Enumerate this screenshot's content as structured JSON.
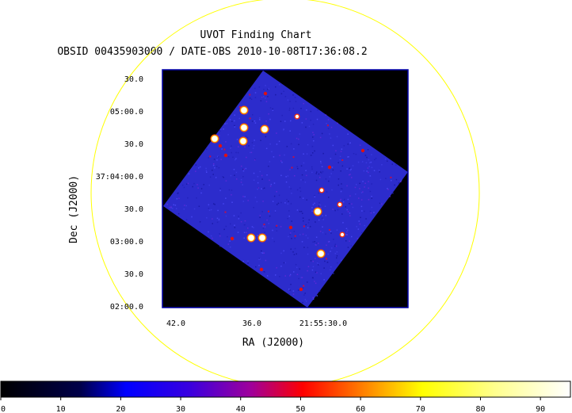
{
  "chart_data": {
    "type": "heatmap",
    "title": "UVOT Finding Chart",
    "subtitle": "OBSID 00435903000 / DATE-OBS 2010-10-08T17:36:08.2",
    "xlabel": "RA (J2000)",
    "ylabel": "Dec (J2000)",
    "x_ticks": [
      "42.0",
      "36.0",
      "21:55:30.0"
    ],
    "y_ticks": [
      "30.0",
      "05:00.0",
      "30.0",
      "37:04:00.0",
      "30.0",
      "03:00.0",
      "30.0",
      "02:00.0"
    ],
    "colorbar": {
      "min": 0,
      "max": 95,
      "ticks": [
        0,
        10,
        20,
        30,
        40,
        50,
        60,
        70,
        80,
        90
      ]
    },
    "grid": false,
    "colors": {
      "field": "#2c2ccc",
      "background": "#000000",
      "circle": "#ffff00",
      "frame": "#0000aa"
    }
  }
}
